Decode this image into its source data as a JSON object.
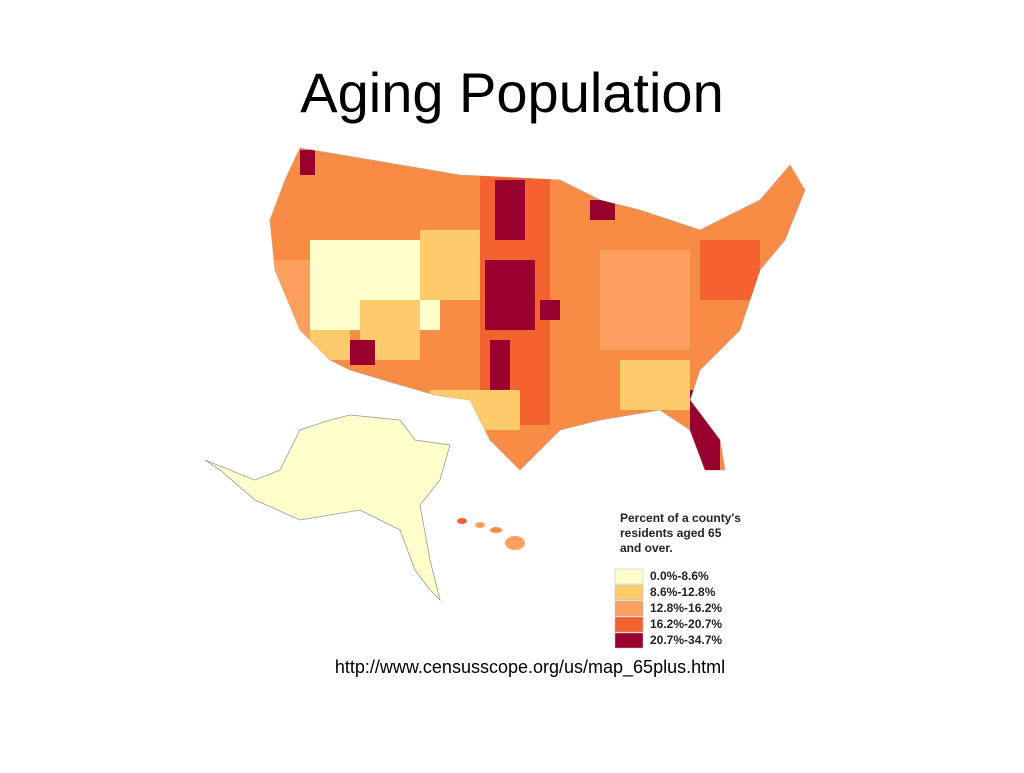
{
  "title": "Aging Population",
  "legend": {
    "title": [
      "Percent of a county's",
      "residents aged 65",
      "and over."
    ],
    "items": [
      {
        "label": "0.0%-8.6%",
        "color": "#ffffcc"
      },
      {
        "label": "8.6%-12.8%",
        "color": "#fdcb6a"
      },
      {
        "label": "12.8%-16.2%",
        "color": "#fd9f5e"
      },
      {
        "label": "16.2%-20.7%",
        "color": "#f4622f"
      },
      {
        "label": "20.7%-34.7%",
        "color": "#98002e"
      }
    ]
  },
  "source": "http://www.censusscope.org/us/map_65plus.html"
}
